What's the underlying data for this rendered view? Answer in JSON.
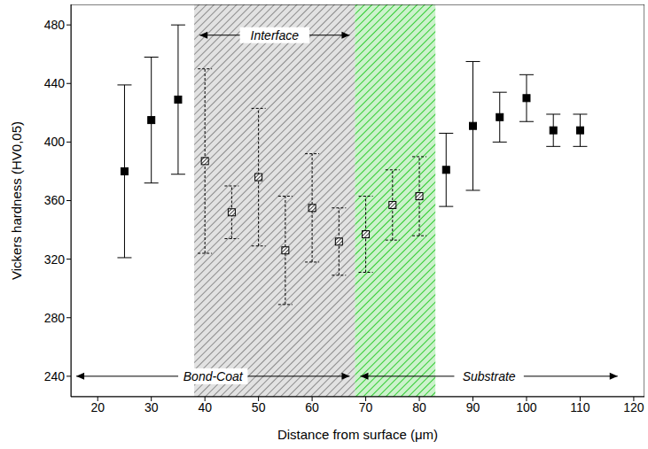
{
  "chart_data": {
    "type": "scatter",
    "xlabel": "Distance from surface (μm)",
    "ylabel": "Vickers hardness (HV0,05)",
    "xlim": [
      15,
      122
    ],
    "ylim": [
      226,
      494
    ],
    "xticks": [
      20,
      30,
      40,
      50,
      60,
      70,
      80,
      90,
      100,
      110,
      120
    ],
    "yticks": [
      240,
      280,
      320,
      360,
      400,
      440,
      480
    ],
    "grid": false,
    "series": [
      {
        "color": "#000000",
        "marker": "square",
        "line_style": "solid",
        "x": [
          25,
          30,
          35
        ],
        "values": [
          380,
          415,
          429
        ],
        "errors": [
          59,
          43,
          51
        ]
      },
      {
        "color": "#000000",
        "marker": "hatched_square",
        "line_style": "dashed",
        "x": [
          40,
          45,
          50,
          55,
          60,
          65
        ],
        "values": [
          387,
          352,
          376,
          326,
          355,
          332
        ],
        "errors": [
          63,
          18,
          47,
          37,
          37,
          23
        ]
      },
      {
        "color": "#000000",
        "marker": "hatched_square",
        "line_style": "dashed",
        "x": [
          70,
          75,
          80
        ],
        "values": [
          337,
          357,
          363
        ],
        "errors": [
          26,
          24,
          27
        ]
      },
      {
        "color": "#000000",
        "marker": "square",
        "line_style": "solid",
        "x": [
          85,
          90,
          95,
          100,
          105,
          110
        ],
        "values": [
          381,
          411,
          417,
          430,
          408,
          408
        ],
        "errors": [
          25,
          44,
          17,
          16,
          11,
          11
        ]
      }
    ],
    "spans": [
      {
        "x": [
          38,
          68
        ],
        "color": "#8c8c8c"
      },
      {
        "x": [
          68,
          83
        ],
        "color": "#33cc33"
      }
    ],
    "annotations": [
      {
        "text": "Interface",
        "x": [
          39,
          67
        ],
        "y": 473
      },
      {
        "text": "Bond-Coat",
        "x": [
          16,
          67
        ],
        "y": 240
      },
      {
        "text": "Substrate",
        "x": [
          69,
          117
        ],
        "y": 240
      }
    ]
  }
}
